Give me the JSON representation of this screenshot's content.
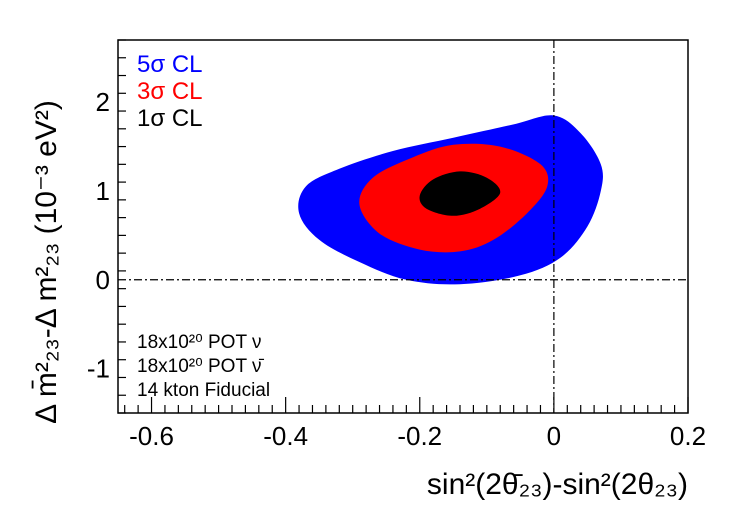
{
  "chart_data": {
    "type": "contour",
    "xlabel": "sin²(2θ̄₂₃)-sin²(2θ₂₃)",
    "ylabel": "Δ m̄²₂₃-Δ m²₂₃ (10⁻³ eV²)",
    "xlim": [
      -0.65,
      0.2
    ],
    "ylim": [
      -1.5,
      2.7
    ],
    "x_ticks": [
      -0.6,
      -0.4,
      -0.2,
      0,
      0.2
    ],
    "x_tick_labels": [
      "-0.6",
      "-0.4",
      "-0.2",
      "0",
      "0.2"
    ],
    "y_ticks": [
      -1,
      0,
      1,
      2
    ],
    "y_tick_labels": [
      "-1",
      "0",
      "1",
      "2"
    ],
    "legend": {
      "position": "top-left",
      "entries": [
        {
          "label": "5σ CL",
          "color": "#0000ff"
        },
        {
          "label": "3σ CL",
          "color": "#ff0000"
        },
        {
          "label": "1σ CL",
          "color": "#000000"
        }
      ]
    },
    "annotations": [
      "18x10²⁰ POT ν",
      "18x10²⁰ POT ν̄",
      "14 kton Fiducial"
    ],
    "reference_lines": {
      "x": 0,
      "y": 0,
      "style": "dash-dot"
    },
    "series": [
      {
        "name": "5σ CL",
        "color": "#0000ff",
        "points": [
          [
            -0.38,
            0.75
          ],
          [
            -0.37,
            1.05
          ],
          [
            -0.32,
            1.25
          ],
          [
            -0.24,
            1.45
          ],
          [
            -0.15,
            1.6
          ],
          [
            -0.06,
            1.75
          ],
          [
            0.0,
            1.85
          ],
          [
            0.04,
            1.65
          ],
          [
            0.07,
            1.3
          ],
          [
            0.07,
            1.0
          ],
          [
            0.05,
            0.6
          ],
          [
            0.01,
            0.25
          ],
          [
            -0.05,
            0.05
          ],
          [
            -0.14,
            -0.05
          ],
          [
            -0.22,
            0.0
          ],
          [
            -0.29,
            0.2
          ],
          [
            -0.35,
            0.45
          ]
        ]
      },
      {
        "name": "3σ CL",
        "color": "#ff0000",
        "points": [
          [
            -0.29,
            0.85
          ],
          [
            -0.27,
            1.15
          ],
          [
            -0.21,
            1.38
          ],
          [
            -0.15,
            1.52
          ],
          [
            -0.08,
            1.5
          ],
          [
            -0.02,
            1.3
          ],
          [
            -0.01,
            1.05
          ],
          [
            -0.04,
            0.75
          ],
          [
            -0.09,
            0.45
          ],
          [
            -0.14,
            0.32
          ],
          [
            -0.2,
            0.34
          ],
          [
            -0.26,
            0.52
          ]
        ]
      },
      {
        "name": "1σ CL",
        "color": "#000000",
        "points": [
          [
            -0.2,
            0.95
          ],
          [
            -0.18,
            1.13
          ],
          [
            -0.14,
            1.22
          ],
          [
            -0.1,
            1.15
          ],
          [
            -0.08,
            0.98
          ],
          [
            -0.11,
            0.8
          ],
          [
            -0.15,
            0.72
          ],
          [
            -0.19,
            0.8
          ]
        ]
      }
    ]
  }
}
